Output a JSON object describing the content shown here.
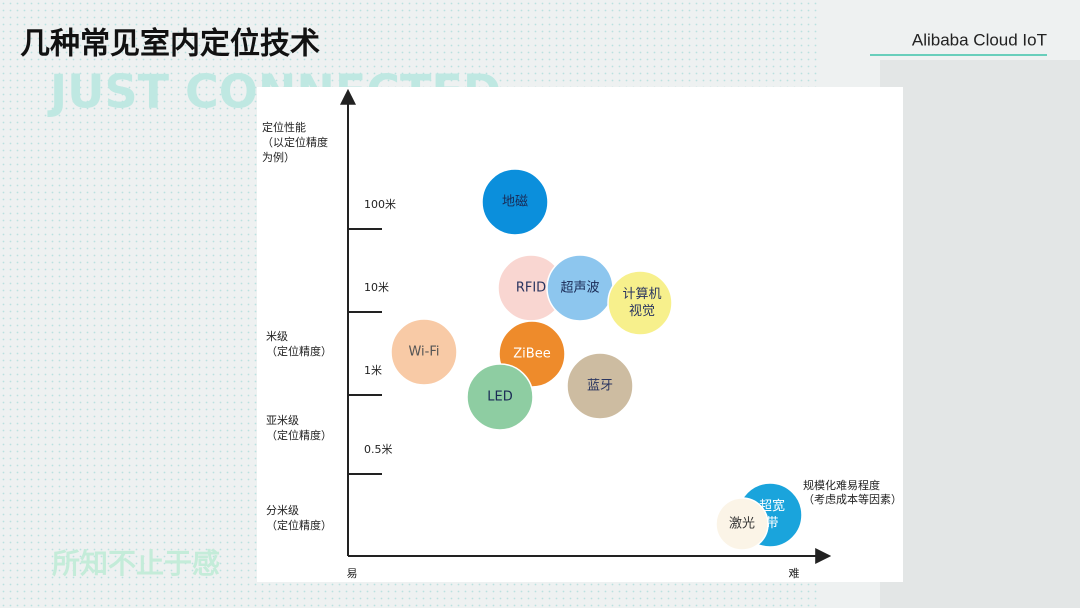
{
  "header": {
    "title": "几种常见室内定位技术",
    "brand": "Alibaba Cloud IoT"
  },
  "background": {
    "watermark": "JUST CONNECTED",
    "slogan": "所知不止于感"
  },
  "diagram": {
    "y_axis_title": [
      "定位性能",
      "（以定位精度",
      "为例）"
    ],
    "x_axis_title": [
      "规模化难易程度",
      "（考虑成本等因素）"
    ],
    "x_start": "易",
    "x_end": "难",
    "ticks": [
      "100米",
      "10米",
      "1米",
      "0.5米"
    ],
    "levels": [
      [
        "米级",
        "（定位精度）"
      ],
      [
        "亚米级",
        "（定位精度）"
      ],
      [
        "分米级",
        "（定位精度）"
      ]
    ],
    "nodes": [
      {
        "label": [
          "地磁"
        ],
        "color": "#0b8fdc"
      },
      {
        "label": [
          "RFID"
        ],
        "color": "#f9d6d1"
      },
      {
        "label": [
          "超声波"
        ],
        "color": "#8dc6ee"
      },
      {
        "label": [
          "计算机",
          "视觉"
        ],
        "color": "#f7f08c"
      },
      {
        "label": [
          "Wi-Fi"
        ],
        "color": "#f8caa6"
      },
      {
        "label": [
          "ZiBee"
        ],
        "color": "#ee8b2b"
      },
      {
        "label": [
          "蓝牙"
        ],
        "color": "#cdbca1"
      },
      {
        "label": [
          "LED"
        ],
        "color": "#8ecda2"
      },
      {
        "label": [
          "超宽",
          "带"
        ],
        "color": "#1aa4dc"
      },
      {
        "label": [
          "激光"
        ],
        "color": "#fbf4e7"
      }
    ]
  }
}
